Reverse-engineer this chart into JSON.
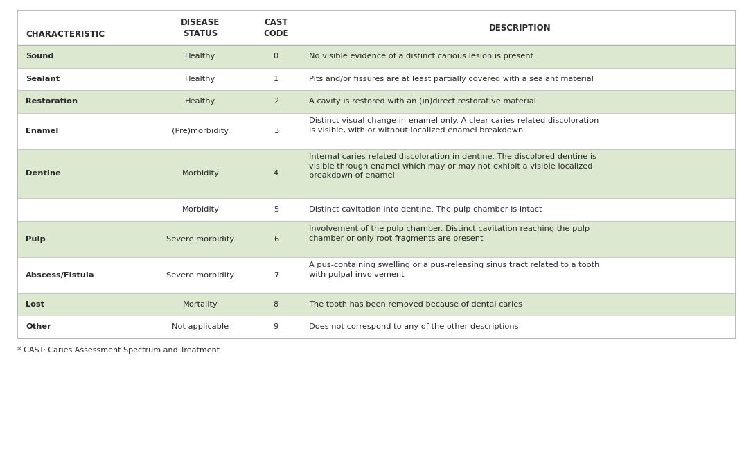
{
  "header_line1": [
    "",
    "DISEASE",
    "CAST",
    ""
  ],
  "header_line2": [
    "CHARACTERISTIC",
    "STATUS",
    "CODE",
    "DESCRIPTION"
  ],
  "rows": [
    {
      "characteristic": "Sound",
      "status": "Healthy",
      "code": "0",
      "description": "No visible evidence of a distinct carious lesion is present",
      "shaded": true
    },
    {
      "characteristic": "Sealant",
      "status": "Healthy",
      "code": "1",
      "description": "Pits and/or fissures are at least partially covered with a sealant material",
      "shaded": false
    },
    {
      "characteristic": "Restoration",
      "status": "Healthy",
      "code": "2",
      "description": "A cavity is restored with an (in)direct restorative material",
      "shaded": true
    },
    {
      "characteristic": "Enamel",
      "status": "(Pre)morbidity",
      "code": "3",
      "description": "Distinct visual change in enamel only. A clear caries-related discoloration\nis visible, with or without localized enamel breakdown",
      "shaded": false
    },
    {
      "characteristic": "Dentine",
      "status": "Morbidity",
      "code": "4",
      "description": "Internal caries-related discoloration in dentine. The discolored dentine is\nvisible through enamel which may or may not exhibit a visible localized\nbreakdown of enamel",
      "shaded": true
    },
    {
      "characteristic": "",
      "status": "Morbidity",
      "code": "5",
      "description": "Distinct cavitation into dentine. The pulp chamber is intact",
      "shaded": false
    },
    {
      "characteristic": "Pulp",
      "status": "Severe morbidity",
      "code": "6",
      "description": "Involvement of the pulp chamber. Distinct cavitation reaching the pulp\nchamber or only root fragments are present",
      "shaded": true
    },
    {
      "characteristic": "Abscess/Fistula",
      "status": "Severe morbidity",
      "code": "7",
      "description": "A pus-containing swelling or a pus-releasing sinus tract related to a tooth\nwith pulpal involvement",
      "shaded": false
    },
    {
      "characteristic": "Lost",
      "status": "Mortality",
      "code": "8",
      "description": "The tooth has been removed because of dental caries",
      "shaded": true
    },
    {
      "characteristic": "Other",
      "status": "Not applicable",
      "code": "9",
      "description": "Does not correspond to any of the other descriptions",
      "shaded": false
    }
  ],
  "footnote": "* CAST: Caries Assessment Spectrum and Treatment.",
  "shaded_color": "#dce8d0",
  "white_color": "#ffffff",
  "border_color": "#b0b0b0",
  "text_color": "#2a2a2a",
  "figsize": [
    10.87,
    6.59
  ],
  "dpi": 100
}
